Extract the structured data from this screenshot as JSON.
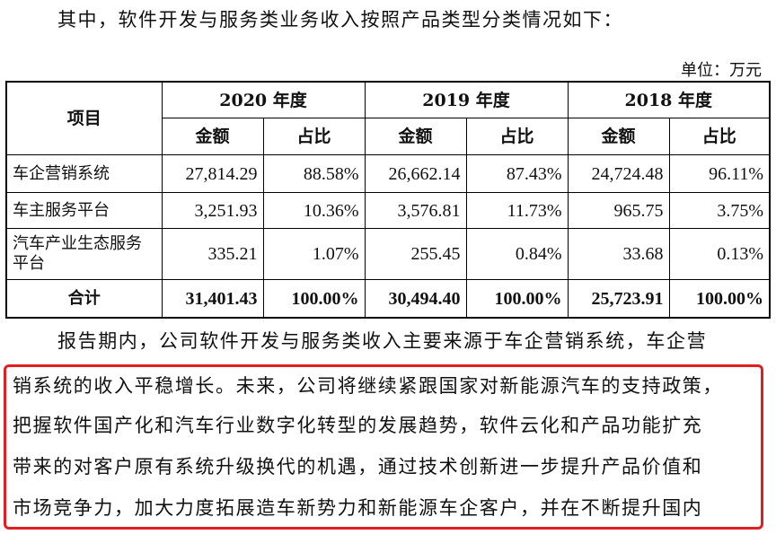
{
  "intro": "其中，软件开发与服务类业务收入按照产品类型分类情况如下：",
  "unit": "单位：万元",
  "table": {
    "item_header": "项目",
    "years": [
      "2020 年度",
      "2019 年度",
      "2018 年度"
    ],
    "sub_headers": [
      "金额",
      "占比",
      "金额",
      "占比",
      "金额",
      "占比"
    ],
    "rows": [
      {
        "label": "车企营销系统",
        "values": [
          "27,814.29",
          "88.58%",
          "26,662.14",
          "87.43%",
          "24,724.48",
          "96.11%"
        ]
      },
      {
        "label": "车主服务平台",
        "values": [
          "3,251.93",
          "10.36%",
          "3,576.81",
          "11.73%",
          "965.75",
          "3.75%"
        ]
      },
      {
        "label": "汽车产业生态服务平台",
        "values": [
          "335.21",
          "1.07%",
          "255.45",
          "0.84%",
          "33.68",
          "0.13%"
        ]
      }
    ],
    "total": {
      "label": "合计",
      "values": [
        "31,401.43",
        "100.00%",
        "30,494.40",
        "100.00%",
        "25,723.91",
        "100.00%"
      ]
    }
  },
  "paragraph": {
    "lines": [
      "报告期内，公司软件开发与服务类收入主要来源于车企营销系统，车企营",
      "销系统的收入平稳增长。未来，公司将继续紧跟国家对新能源汽车的支持政策，",
      "把握软件国产化和汽车行业数字化转型的发展趋势，软件云化和产品功能扩充",
      "带来的对客户原有系统升级换代的机遇，通过技术创新进一步提升产品价值和",
      "市场竞争力，加大力度拓展造车新势力和新能源车企客户，并在不断提升国内"
    ]
  },
  "colors": {
    "highlight_border": "#e02020",
    "text": "#111111"
  }
}
